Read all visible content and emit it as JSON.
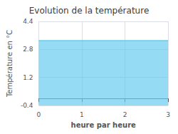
{
  "chart_data": {
    "type": "line",
    "title": "Evolution de la température",
    "xlabel": "heure par heure",
    "ylabel": "Température en °C",
    "x": [
      0,
      1,
      2,
      3
    ],
    "values": [
      3.3,
      3.3,
      3.3,
      3.3
    ],
    "color": "#66ccee",
    "xlim": [
      0,
      3
    ],
    "xticks": [
      0,
      1,
      2,
      3
    ],
    "ylim": [
      -0.4,
      4.4
    ],
    "yticks": [
      -0.4,
      1.2,
      2.8,
      4.4
    ],
    "grid": true
  }
}
